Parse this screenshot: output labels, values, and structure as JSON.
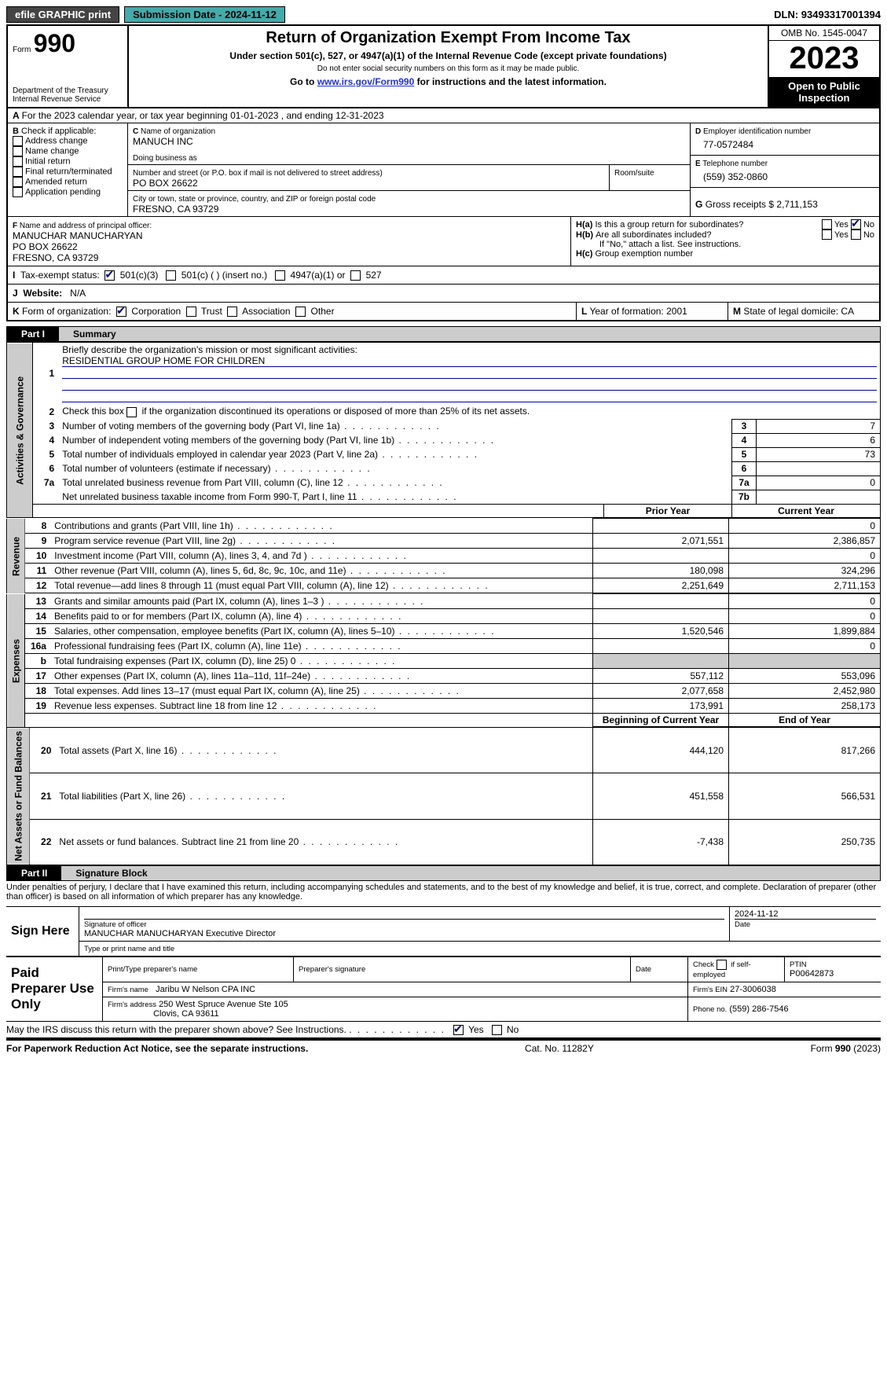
{
  "topbar": {
    "efile_label": "efile GRAPHIC print",
    "submission_label": "Submission Date - 2024-11-12",
    "dln_label": "DLN: 93493317001394"
  },
  "header": {
    "form_prefix": "Form",
    "form_number": "990",
    "dept": "Department of the Treasury",
    "irs": "Internal Revenue Service",
    "title": "Return of Organization Exempt From Income Tax",
    "subtitle": "Under section 501(c), 527, or 4947(a)(1) of the Internal Revenue Code (except private foundations)",
    "ssn_note": "Do not enter social security numbers on this form as it may be made public.",
    "goto_prefix": "Go to ",
    "goto_link": "www.irs.gov/Form990",
    "goto_suffix": " for instructions and the latest information.",
    "omb": "OMB No. 1545-0047",
    "year": "2023",
    "inspect": "Open to Public Inspection"
  },
  "A": {
    "text": "For the 2023 calendar year, or tax year beginning 01-01-2023   , and ending 12-31-2023"
  },
  "B": {
    "label": "Check if applicable:",
    "opts": [
      "Address change",
      "Name change",
      "Initial return",
      "Final return/terminated",
      "Amended return",
      "Application pending"
    ]
  },
  "C": {
    "name_lbl": "Name of organization",
    "name": "MANUCH INC",
    "dba_lbl": "Doing business as",
    "addr_lbl": "Number and street (or P.O. box if mail is not delivered to street address)",
    "addr": "PO BOX 26622",
    "room_lbl": "Room/suite",
    "city_lbl": "City or town, state or province, country, and ZIP or foreign postal code",
    "city": "FRESNO, CA  93729"
  },
  "D": {
    "lbl": "Employer identification number",
    "val": "77-0572484"
  },
  "E": {
    "lbl": "Telephone number",
    "val": "(559) 352-0860"
  },
  "G": {
    "lbl": "Gross receipts $",
    "val": "2,711,153"
  },
  "F": {
    "lbl": "Name and address of principal officer:",
    "name": "MANUCHAR MANUCHARYAN",
    "addr1": "PO BOX 26622",
    "addr2": "FRESNO, CA  93729"
  },
  "H": {
    "a_lbl": "Is this a group return for subordinates?",
    "b_lbl": "Are all subordinates included?",
    "b_note": "If \"No,\" attach a list. See instructions.",
    "c_lbl": "Group exemption number",
    "yes": "Yes",
    "no": "No"
  },
  "I": {
    "lbl": "Tax-exempt status:",
    "o1": "501(c)(3)",
    "o2": "501(c) (  ) (insert no.)",
    "o3": "4947(a)(1) or",
    "o4": "527"
  },
  "J": {
    "lbl": "Website:",
    "val": "N/A"
  },
  "K": {
    "lbl": "Form of organization:",
    "o1": "Corporation",
    "o2": "Trust",
    "o3": "Association",
    "o4": "Other"
  },
  "L": {
    "lbl": "Year of formation:",
    "val": "2001"
  },
  "M": {
    "lbl": "State of legal domicile:",
    "val": "CA"
  },
  "part1": {
    "num": "Part I",
    "title": "Summary"
  },
  "summary": {
    "l1_lbl": "Briefly describe the organization's mission or most significant activities:",
    "l1_val": "RESIDENTIAL GROUP HOME FOR CHILDREN",
    "l2": "Check this box      if the organization discontinued its operations or disposed of more than 25% of its net assets.",
    "l3": "Number of voting members of the governing body (Part VI, line 1a)",
    "l4": "Number of independent voting members of the governing body (Part VI, line 1b)",
    "l5": "Total number of individuals employed in calendar year 2023 (Part V, line 2a)",
    "l6": "Total number of volunteers (estimate if necessary)",
    "l7a": "Total unrelated business revenue from Part VIII, column (C), line 12",
    "l7b": "Net unrelated business taxable income from Form 990-T, Part I, line 11",
    "v3": "7",
    "v4": "6",
    "v5": "73",
    "v6": "",
    "v7a": "0",
    "v7b": "",
    "prior_hdr": "Prior Year",
    "current_hdr": "Current Year",
    "rows_rev": [
      {
        "n": "8",
        "t": "Contributions and grants (Part VIII, line 1h)",
        "p": "",
        "c": "0"
      },
      {
        "n": "9",
        "t": "Program service revenue (Part VIII, line 2g)",
        "p": "2,071,551",
        "c": "2,386,857"
      },
      {
        "n": "10",
        "t": "Investment income (Part VIII, column (A), lines 3, 4, and 7d )",
        "p": "",
        "c": "0"
      },
      {
        "n": "11",
        "t": "Other revenue (Part VIII, column (A), lines 5, 6d, 8c, 9c, 10c, and 11e)",
        "p": "180,098",
        "c": "324,296"
      },
      {
        "n": "12",
        "t": "Total revenue—add lines 8 through 11 (must equal Part VIII, column (A), line 12)",
        "p": "2,251,649",
        "c": "2,711,153"
      }
    ],
    "rows_exp": [
      {
        "n": "13",
        "t": "Grants and similar amounts paid (Part IX, column (A), lines 1–3 )",
        "p": "",
        "c": "0"
      },
      {
        "n": "14",
        "t": "Benefits paid to or for members (Part IX, column (A), line 4)",
        "p": "",
        "c": "0"
      },
      {
        "n": "15",
        "t": "Salaries, other compensation, employee benefits (Part IX, column (A), lines 5–10)",
        "p": "1,520,546",
        "c": "1,899,884"
      },
      {
        "n": "16a",
        "t": "Professional fundraising fees (Part IX, column (A), line 11e)",
        "p": "",
        "c": "0"
      },
      {
        "n": "b",
        "t": "Total fundraising expenses (Part IX, column (D), line 25) 0",
        "p": "SHADE",
        "c": "SHADE"
      },
      {
        "n": "17",
        "t": "Other expenses (Part IX, column (A), lines 11a–11d, 11f–24e)",
        "p": "557,112",
        "c": "553,096"
      },
      {
        "n": "18",
        "t": "Total expenses. Add lines 13–17 (must equal Part IX, column (A), line 25)",
        "p": "2,077,658",
        "c": "2,452,980"
      },
      {
        "n": "19",
        "t": "Revenue less expenses. Subtract line 18 from line 12",
        "p": "173,991",
        "c": "258,173"
      }
    ],
    "begin_hdr": "Beginning of Current Year",
    "end_hdr": "End of Year",
    "rows_net": [
      {
        "n": "20",
        "t": "Total assets (Part X, line 16)",
        "p": "444,120",
        "c": "817,266"
      },
      {
        "n": "21",
        "t": "Total liabilities (Part X, line 26)",
        "p": "451,558",
        "c": "566,531"
      },
      {
        "n": "22",
        "t": "Net assets or fund balances. Subtract line 21 from line 20",
        "p": "-7,438",
        "c": "250,735"
      }
    ],
    "side_gov": "Activities & Governance",
    "side_rev": "Revenue",
    "side_exp": "Expenses",
    "side_net": "Net Assets or Fund Balances"
  },
  "part2": {
    "num": "Part II",
    "title": "Signature Block"
  },
  "perjury": "Under penalties of perjury, I declare that I have examined this return, including accompanying schedules and statements, and to the best of my knowledge and belief, it is true, correct, and complete. Declaration of preparer (other than officer) is based on all information of which preparer has any knowledge.",
  "sign": {
    "here": "Sign Here",
    "sig_lbl": "Signature of officer",
    "date_lbl": "Date",
    "sig_date": "2024-11-12",
    "officer": "MANUCHAR MANUCHARYAN  Executive Director",
    "type_lbl": "Type or print name and title"
  },
  "paid": {
    "title": "Paid Preparer Use Only",
    "print_lbl": "Print/Type preparer's name",
    "prepsig_lbl": "Preparer's signature",
    "date_lbl": "Date",
    "self_lbl": "Check         if self-employed",
    "ptin_lbl": "PTIN",
    "ptin": "P00642873",
    "firm_name_lbl": "Firm's name",
    "firm_name": "Jaribu W Nelson CPA INC",
    "firm_ein_lbl": "Firm's EIN",
    "firm_ein": "27-3006038",
    "firm_addr_lbl": "Firm's address",
    "firm_addr1": "250 West Spruce Avenue Ste 105",
    "firm_addr2": "Clovis, CA  93611",
    "phone_lbl": "Phone no.",
    "phone": "(559) 286-7546"
  },
  "discuss": {
    "q": "May the IRS discuss this return with the preparer shown above? See Instructions.",
    "yes": "Yes",
    "no": "No"
  },
  "footer": {
    "left": "For Paperwork Reduction Act Notice, see the separate instructions.",
    "mid": "Cat. No. 11282Y",
    "right_pre": "Form ",
    "right_num": "990",
    "right_suf": " (2023)"
  }
}
